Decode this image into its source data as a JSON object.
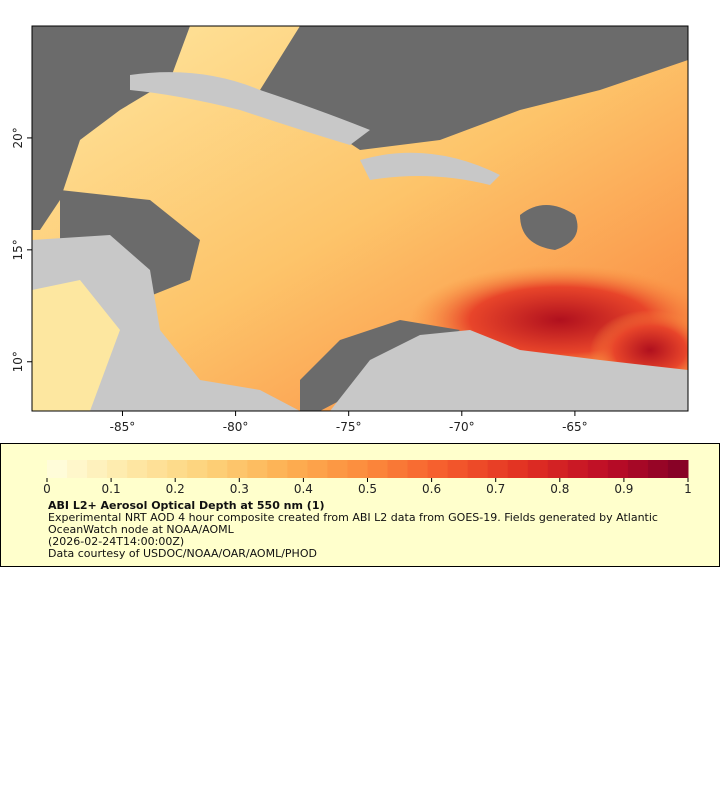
{
  "chart_data": {
    "type": "map",
    "xlim": [
      -89,
      -60
    ],
    "ylim": [
      7.8,
      25
    ],
    "xticks": [
      {
        "value": -85,
        "label": "-85°"
      },
      {
        "value": -80,
        "label": "-80°"
      },
      {
        "value": -75,
        "label": "-75°"
      },
      {
        "value": -70,
        "label": "-70°"
      },
      {
        "value": -65,
        "label": "-65°"
      }
    ],
    "yticks": [
      {
        "value": 10,
        "label": "10°"
      },
      {
        "value": 15,
        "label": "15°"
      },
      {
        "value": 20,
        "label": "20°"
      }
    ],
    "colorbar": {
      "lim": [
        0,
        1
      ],
      "ticks": [
        0,
        0.1,
        0.2,
        0.3,
        0.4,
        0.5,
        0.6,
        0.7,
        0.8,
        0.9,
        1
      ],
      "colors": [
        "#ffffe0",
        "#fee9a8",
        "#fdd27a",
        "#fdb052",
        "#fc8a3c",
        "#f55a2c",
        "#e02e22",
        "#bd0d26",
        "#800026"
      ]
    },
    "title": "ABI L2+ Aerosol Optical Depth at 550 nm (1)",
    "description": "Experimental NRT AOD 4 hour composite created from ABI L2 data from GOES-19. Fields generated by Atlantic OceanWatch node at NOAA/AOML",
    "timestamp": "(2026-02-24T14:00:00Z)",
    "credit": "Data courtesy of USDOC/NOAA/OAR/AOML/PHOD"
  }
}
